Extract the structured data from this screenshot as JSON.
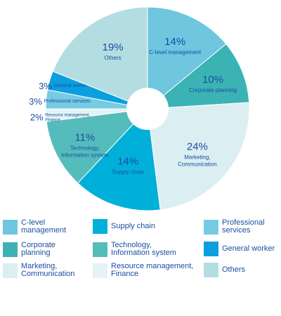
{
  "chart_data": {
    "type": "pie",
    "donut": true,
    "slices": [
      {
        "label": "C-level management",
        "value": 14,
        "value_label": "14%",
        "chart_label": "C-level management",
        "color": "#6ec6df"
      },
      {
        "label": "Corporate planning",
        "value": 10,
        "value_label": "10%",
        "chart_label": "Corporate planning",
        "color": "#3bb3b5"
      },
      {
        "label": "Marketing, Communication",
        "value": 24,
        "value_label": "24%",
        "chart_label": "Marketing,\nCommunication",
        "color": "#dbeff2"
      },
      {
        "label": "Supply chain",
        "value": 14,
        "value_label": "14%",
        "chart_label": "Supply chain",
        "color": "#00b0d8"
      },
      {
        "label": "Technology, Information system",
        "value": 11,
        "value_label": "11%",
        "chart_label": "Technology,\nInformation system",
        "color": "#55bcbc"
      },
      {
        "label": "Resource management, Finance",
        "value": 2,
        "value_label": "2%",
        "chart_label": "Resource management,\nFinance",
        "color": "#e4f3f5"
      },
      {
        "label": "Professional services",
        "value": 3,
        "value_label": "3%",
        "chart_label": "Professional services",
        "color": "#76cbe3"
      },
      {
        "label": "General worker",
        "value": 3,
        "value_label": "3%",
        "chart_label": "General worker",
        "color": "#0c9fe0"
      },
      {
        "label": "Others",
        "value": 19,
        "value_label": "19%",
        "chart_label": "Others",
        "color": "#b4dde2"
      }
    ],
    "text_color": "#1a4fa3"
  },
  "legend": {
    "items": [
      {
        "label": "C-level\nmanagement",
        "color": "#6ec6df"
      },
      {
        "label": "Supply chain",
        "color": "#00b0d8"
      },
      {
        "label": "Professional\nservices",
        "color": "#76cbe3"
      },
      {
        "label": "Corporate\nplanning",
        "color": "#3bb3b5"
      },
      {
        "label": "Technology,\nInformation system",
        "color": "#55bcbc"
      },
      {
        "label": "General worker",
        "color": "#0c9fe0"
      },
      {
        "label": "Marketing,\nCommunication",
        "color": "#dbeff2"
      },
      {
        "label": "Resource management,\nFinance",
        "color": "#e4f3f5"
      },
      {
        "label": "Others",
        "color": "#b4dde2"
      }
    ]
  }
}
